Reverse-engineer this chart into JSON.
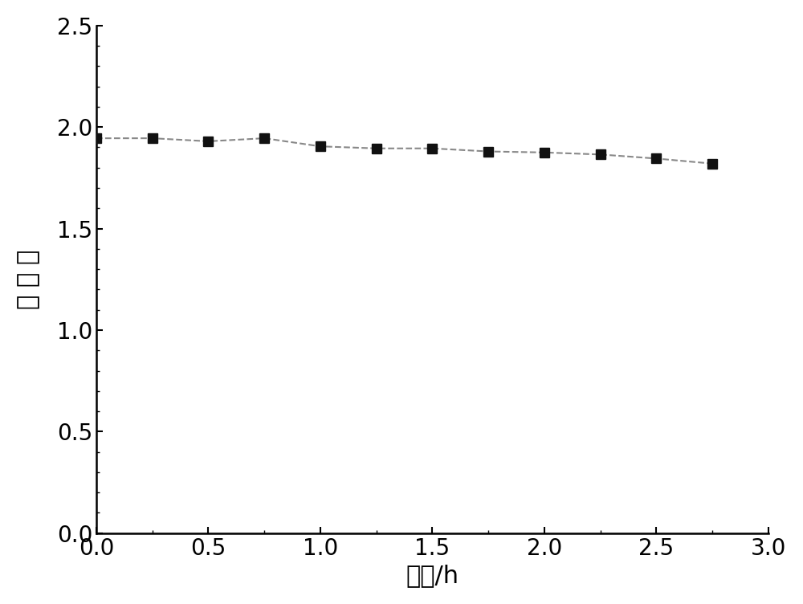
{
  "x": [
    0.0,
    0.25,
    0.5,
    0.75,
    1.0,
    1.25,
    1.5,
    1.75,
    2.0,
    2.25,
    2.5,
    2.75
  ],
  "y": [
    1.945,
    1.945,
    1.93,
    1.945,
    1.905,
    1.895,
    1.895,
    1.88,
    1.875,
    1.865,
    1.845,
    1.82
  ],
  "xlabel": "时间/h",
  "ylabel": "吸 光 度",
  "xlim": [
    0.0,
    3.0
  ],
  "ylim": [
    0.0,
    2.5
  ],
  "xticks": [
    0.0,
    0.5,
    1.0,
    1.5,
    2.0,
    2.5,
    3.0
  ],
  "yticks": [
    0.0,
    0.5,
    1.0,
    1.5,
    2.0,
    2.5
  ],
  "line_color": "#888888",
  "marker_color": "#111111",
  "line_style": "--",
  "marker_style": "s",
  "marker_size": 9,
  "line_width": 1.5,
  "xlabel_fontsize": 22,
  "ylabel_fontsize": 22,
  "tick_fontsize": 20,
  "background_color": "#ffffff"
}
